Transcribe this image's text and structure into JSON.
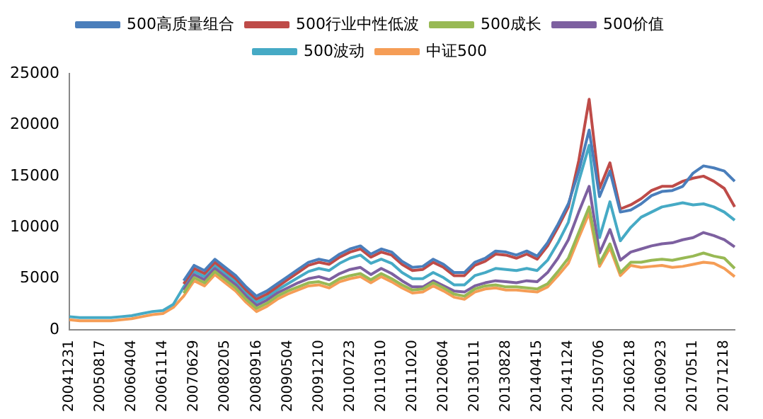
{
  "chart_data": {
    "type": "line",
    "categories": [
      "20041231",
      null,
      null,
      "20050817",
      null,
      null,
      "20060404",
      null,
      null,
      "20061114",
      null,
      null,
      "20070629",
      null,
      null,
      "20080205",
      null,
      null,
      "20080916",
      null,
      null,
      "20090504",
      null,
      null,
      "20091210",
      null,
      null,
      "20100723",
      null,
      null,
      "20110310",
      null,
      null,
      "20111020",
      null,
      null,
      "20120604",
      null,
      null,
      "20130111",
      null,
      null,
      "20130828",
      null,
      null,
      "20140415",
      null,
      null,
      "20141124",
      null,
      null,
      "20150706",
      null,
      null,
      "20160218",
      null,
      null,
      "20160923",
      null,
      null,
      "20170511",
      null,
      null,
      "20171218",
      null
    ],
    "series": [
      {
        "name": "500高质量组合",
        "color": "#4a7ebb",
        "values": [
          null,
          null,
          null,
          null,
          null,
          null,
          null,
          null,
          null,
          null,
          null,
          4800,
          6300,
          5800,
          6900,
          6100,
          5300,
          4200,
          3300,
          3800,
          4500,
          5200,
          5900,
          6600,
          6900,
          6700,
          7400,
          7900,
          8200,
          7400,
          7900,
          7600,
          6700,
          6100,
          6200,
          6900,
          6400,
          5600,
          5600,
          6600,
          7000,
          7700,
          7600,
          7300,
          7700,
          7200,
          8500,
          10300,
          12300,
          15500,
          19500,
          13000,
          15500,
          11500,
          11700,
          12300,
          13100,
          13500,
          13600,
          14000,
          15300,
          16000,
          15800,
          15500,
          14500
        ]
      },
      {
        "name": "500行业中性低波",
        "color": "#be4b48",
        "values": [
          null,
          null,
          null,
          null,
          null,
          null,
          null,
          null,
          null,
          null,
          null,
          4500,
          6000,
          5500,
          6600,
          5800,
          5000,
          3900,
          3000,
          3500,
          4200,
          4900,
          5600,
          6300,
          6600,
          6400,
          7100,
          7600,
          7900,
          7100,
          7600,
          7300,
          6400,
          5800,
          5900,
          6600,
          6100,
          5300,
          5300,
          6300,
          6700,
          7400,
          7300,
          7000,
          7400,
          6900,
          8200,
          10000,
          12000,
          16500,
          22500,
          13800,
          16300,
          11800,
          12200,
          12800,
          13600,
          14000,
          14000,
          14500,
          14800,
          15000,
          14500,
          13800,
          12000
        ]
      },
      {
        "name": "500成长",
        "color": "#98b954",
        "values": [
          null,
          null,
          null,
          null,
          null,
          null,
          null,
          null,
          null,
          null,
          null,
          3600,
          5100,
          4600,
          5700,
          4900,
          4100,
          3000,
          2100,
          2600,
          3300,
          3800,
          4200,
          4600,
          4700,
          4400,
          5000,
          5300,
          5500,
          4900,
          5500,
          5000,
          4400,
          3900,
          4000,
          4600,
          4100,
          3500,
          3300,
          4000,
          4300,
          4400,
          4200,
          4200,
          4100,
          4000,
          4500,
          5700,
          7000,
          9500,
          12000,
          6500,
          8400,
          5600,
          6600,
          6600,
          6800,
          6900,
          6800,
          7000,
          7200,
          7500,
          7200,
          7000,
          6000
        ]
      },
      {
        "name": "500价值",
        "color": "#7d60a0",
        "values": [
          null,
          null,
          null,
          null,
          null,
          null,
          null,
          null,
          null,
          null,
          null,
          3900,
          5400,
          4900,
          6000,
          5200,
          4400,
          3300,
          2400,
          2900,
          3600,
          4100,
          4600,
          5000,
          5200,
          4900,
          5500,
          5900,
          6100,
          5400,
          6000,
          5500,
          4800,
          4200,
          4200,
          4800,
          4300,
          3800,
          3700,
          4300,
          4600,
          4800,
          4700,
          4600,
          4800,
          4700,
          5600,
          7000,
          8800,
          11500,
          14000,
          7500,
          9800,
          6800,
          7600,
          7900,
          8200,
          8400,
          8500,
          8800,
          9000,
          9500,
          9200,
          8800,
          8100
        ]
      },
      {
        "name": "500波动",
        "color": "#46aac5",
        "values": [
          1300,
          1200,
          1200,
          1200,
          1200,
          1300,
          1400,
          1600,
          1800,
          1900,
          2500,
          4200,
          5700,
          5200,
          6300,
          5500,
          4700,
          3600,
          2700,
          3200,
          3900,
          4500,
          5100,
          5700,
          6000,
          5800,
          6500,
          7000,
          7300,
          6500,
          6900,
          6500,
          5600,
          5000,
          5000,
          5600,
          5100,
          4400,
          4400,
          5300,
          5600,
          6000,
          5900,
          5800,
          6000,
          5800,
          6800,
          8500,
          10500,
          14500,
          18000,
          9000,
          12500,
          8700,
          10000,
          11000,
          11500,
          12000,
          12200,
          12400,
          12200,
          12300,
          12000,
          11500,
          10700
        ]
      },
      {
        "name": "中证500",
        "color": "#f59d56",
        "values": [
          1000,
          900,
          900,
          900,
          900,
          1000,
          1100,
          1300,
          1500,
          1600,
          2200,
          3300,
          4800,
          4300,
          5400,
          4600,
          3800,
          2700,
          1800,
          2300,
          3000,
          3500,
          3900,
          4300,
          4400,
          4100,
          4700,
          5000,
          5200,
          4600,
          5200,
          4700,
          4100,
          3600,
          3700,
          4300,
          3800,
          3200,
          3000,
          3700,
          4000,
          4100,
          3900,
          3900,
          3800,
          3700,
          4200,
          5300,
          6500,
          9000,
          11400,
          6200,
          8000,
          5300,
          6300,
          6100,
          6200,
          6300,
          6100,
          6200,
          6400,
          6600,
          6500,
          6000,
          5200
        ]
      }
    ],
    "ylim": [
      0,
      25000
    ],
    "yticks": [
      0,
      5000,
      10000,
      15000,
      20000,
      25000
    ],
    "grid": false,
    "legend": "top",
    "marker": "none",
    "line_style": "solid"
  }
}
